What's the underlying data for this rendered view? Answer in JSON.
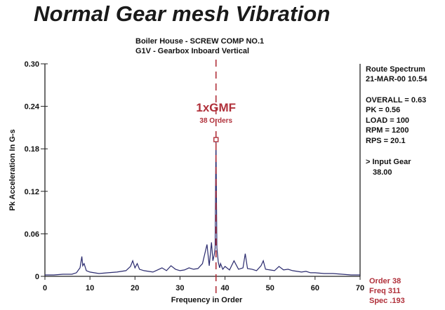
{
  "header": {
    "title": "Normal Gear mesh Vibration",
    "line1": "Boiler House - SCREW COMP NO.1",
    "line2": "G1V - Gearbox Inboard Vertical"
  },
  "info_panel": {
    "route_line1": "Route Spectrum",
    "route_line2": "21-MAR-00  10.54",
    "overall": "OVERALL  = 0.63",
    "pk": "PK = 0.56",
    "load": "LOAD = 100",
    "rpm": "RPM = 1200",
    "rps": "RPS = 20.1",
    "input_gear_label": "> Input Gear",
    "input_gear_value": "38.00"
  },
  "cursor_readout": {
    "order": "Order  38",
    "freq": "Freq  311",
    "spec": "Spec  .193"
  },
  "annotation": {
    "label": "1xGMF",
    "sublabel": "38 Orders",
    "color": "#b0303a"
  },
  "chart_data": {
    "type": "line",
    "xlabel": "Frequency in Order",
    "ylabel": "Pk Acceleration In G-s",
    "xlim": [
      0,
      70
    ],
    "ylim": [
      0,
      0.3
    ],
    "x_ticks": [
      "0",
      "10",
      "20",
      "30",
      "40",
      "50",
      "60",
      "70"
    ],
    "y_ticks": [
      "0",
      "0.06",
      "0.12",
      "0.18",
      "0.24",
      "0.30"
    ],
    "line_color": "#2a2a6e",
    "marker": {
      "x": 38,
      "y": 0.193
    },
    "x": [
      0,
      2,
      4,
      6,
      7,
      7.8,
      8.2,
      8.4,
      8.7,
      9.2,
      10,
      12,
      14,
      16,
      18,
      19,
      19.5,
      20,
      20.5,
      21,
      22,
      23,
      24,
      25,
      26,
      27,
      28,
      29,
      30,
      31,
      32,
      33,
      34,
      35,
      36,
      36.5,
      37,
      37.3,
      37.6,
      37.8,
      38,
      38.2,
      38.5,
      38.8,
      39,
      39.5,
      40,
      41,
      42,
      43,
      44,
      44.5,
      45,
      46,
      47,
      48,
      48.5,
      49,
      50,
      51,
      52,
      53,
      54,
      55,
      56,
      57,
      58,
      59,
      60,
      62,
      64,
      66,
      68,
      70
    ],
    "y": [
      0.002,
      0.002,
      0.003,
      0.003,
      0.005,
      0.012,
      0.028,
      0.015,
      0.018,
      0.008,
      0.006,
      0.004,
      0.005,
      0.006,
      0.008,
      0.014,
      0.022,
      0.012,
      0.018,
      0.01,
      0.008,
      0.007,
      0.006,
      0.009,
      0.012,
      0.008,
      0.015,
      0.01,
      0.008,
      0.009,
      0.012,
      0.01,
      0.011,
      0.018,
      0.045,
      0.015,
      0.048,
      0.022,
      0.03,
      0.04,
      0.193,
      0.04,
      0.02,
      0.012,
      0.018,
      0.01,
      0.014,
      0.009,
      0.022,
      0.01,
      0.012,
      0.032,
      0.011,
      0.01,
      0.008,
      0.015,
      0.022,
      0.01,
      0.009,
      0.008,
      0.014,
      0.009,
      0.01,
      0.008,
      0.007,
      0.006,
      0.007,
      0.005,
      0.005,
      0.004,
      0.004,
      0.003,
      0.002,
      0.002
    ]
  }
}
